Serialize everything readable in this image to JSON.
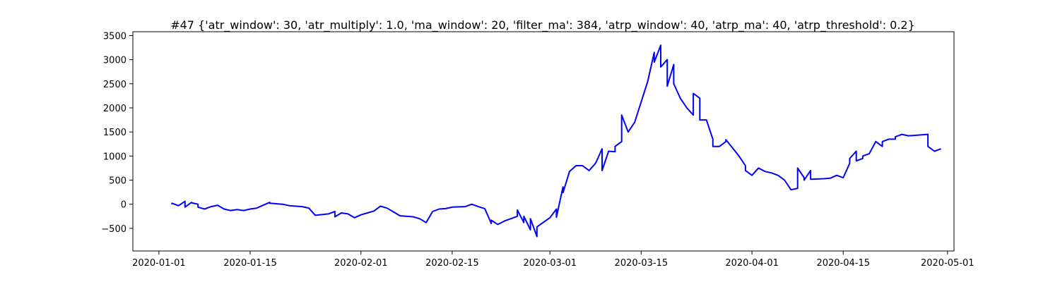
{
  "chart_data": {
    "type": "line",
    "title": "#47 {'atr_window': 30, 'atr_multiply': 1.0, 'ma_window': 20, 'filter_ma': 384, 'atrp_window': 40, 'atrp_ma': 40, 'atrp_threshold': 0.2}",
    "xlabel": "",
    "ylabel": "",
    "xlim": [
      "2019-12-28",
      "2020-05-02"
    ],
    "ylim": [
      -970,
      3580
    ],
    "x_ticks": [
      "2020-01-01",
      "2020-01-15",
      "2020-02-01",
      "2020-02-15",
      "2020-03-01",
      "2020-03-15",
      "2020-04-01",
      "2020-04-15",
      "2020-05-01"
    ],
    "y_ticks": [
      -500,
      0,
      500,
      1000,
      1500,
      2000,
      2500,
      3000,
      3500
    ],
    "grid": false,
    "legend": "none",
    "series": [
      {
        "color": "#0000ff",
        "x": [
          "2020-01-03",
          "2020-01-03",
          "2020-01-04",
          "2020-01-05",
          "2020-01-05",
          "2020-01-06",
          "2020-01-06",
          "2020-01-07",
          "2020-01-07",
          "2020-01-08",
          "2020-01-09",
          "2020-01-10",
          "2020-01-11",
          "2020-01-12",
          "2020-01-13",
          "2020-01-14",
          "2020-01-15",
          "2020-01-16",
          "2020-01-17",
          "2020-01-18",
          "2020-01-18",
          "2020-01-19",
          "2020-01-20",
          "2020-01-21",
          "2020-01-23",
          "2020-01-24",
          "2020-01-25",
          "2020-01-27",
          "2020-01-28",
          "2020-01-28",
          "2020-01-29",
          "2020-01-30",
          "2020-01-31",
          "2020-02-01",
          "2020-02-02",
          "2020-02-03",
          "2020-02-04",
          "2020-02-05",
          "2020-02-06",
          "2020-02-07",
          "2020-02-09",
          "2020-02-10",
          "2020-02-11",
          "2020-02-12",
          "2020-02-13",
          "2020-02-14",
          "2020-02-15",
          "2020-02-17",
          "2020-02-18",
          "2020-02-19",
          "2020-02-20",
          "2020-02-21",
          "2020-02-21",
          "2020-02-22",
          "2020-02-23",
          "2020-02-25",
          "2020-02-25",
          "2020-02-26",
          "2020-02-26",
          "2020-02-27",
          "2020-02-27",
          "2020-02-28",
          "2020-02-28",
          "2020-03-01",
          "2020-03-02",
          "2020-03-02",
          "2020-03-03",
          "2020-03-03",
          "2020-03-04",
          "2020-03-05",
          "2020-03-06",
          "2020-03-07",
          "2020-03-08",
          "2020-03-08",
          "2020-03-09",
          "2020-03-09",
          "2020-03-10",
          "2020-03-11",
          "2020-03-11",
          "2020-03-12",
          "2020-03-12",
          "2020-03-13",
          "2020-03-14",
          "2020-03-16",
          "2020-03-17",
          "2020-03-17",
          "2020-03-18",
          "2020-03-18",
          "2020-03-19",
          "2020-03-19",
          "2020-03-20",
          "2020-03-20",
          "2020-03-21",
          "2020-03-22",
          "2020-03-23",
          "2020-03-23",
          "2020-03-24",
          "2020-03-24",
          "2020-03-25",
          "2020-03-26",
          "2020-03-26",
          "2020-03-27",
          "2020-03-28",
          "2020-03-28",
          "2020-03-30",
          "2020-03-31",
          "2020-03-31",
          "2020-04-01",
          "2020-04-02",
          "2020-04-03",
          "2020-04-04",
          "2020-04-05",
          "2020-04-06",
          "2020-04-07",
          "2020-04-08",
          "2020-04-08",
          "2020-04-09",
          "2020-04-09",
          "2020-04-10",
          "2020-04-10",
          "2020-04-12",
          "2020-04-13",
          "2020-04-14",
          "2020-04-15",
          "2020-04-16",
          "2020-04-16",
          "2020-04-17",
          "2020-04-17",
          "2020-04-18",
          "2020-04-18",
          "2020-04-19",
          "2020-04-20",
          "2020-04-21",
          "2020-04-21",
          "2020-04-22",
          "2020-04-23",
          "2020-04-23",
          "2020-04-24",
          "2020-04-25",
          "2020-04-26",
          "2020-04-27",
          "2020-04-28",
          "2020-04-28",
          "2020-04-29",
          "2020-04-30"
        ],
        "y": [
          0,
          20,
          -30,
          60,
          -60,
          40,
          30,
          0,
          -60,
          -100,
          -50,
          -20,
          -100,
          -130,
          -110,
          -130,
          -100,
          -80,
          -20,
          40,
          20,
          10,
          0,
          -30,
          -50,
          -80,
          -230,
          -200,
          -150,
          -260,
          -180,
          -200,
          -280,
          -220,
          -180,
          -140,
          -40,
          -80,
          -160,
          -240,
          -260,
          -300,
          -380,
          -150,
          -100,
          -90,
          -60,
          -50,
          0,
          -50,
          -90,
          -400,
          -330,
          -420,
          -350,
          -250,
          -120,
          -380,
          -250,
          -530,
          -300,
          -670,
          -470,
          -280,
          -100,
          -270,
          360,
          240,
          680,
          800,
          800,
          700,
          850,
          850,
          1150,
          700,
          1100,
          1090,
          1200,
          1300,
          1850,
          1500,
          1700,
          2550,
          3150,
          2950,
          3300,
          2850,
          3000,
          2450,
          2900,
          2500,
          2200,
          2000,
          1850,
          2300,
          2200,
          1750,
          1750,
          1350,
          1200,
          1200,
          1300,
          1340,
          1000,
          800,
          700,
          600,
          750,
          680,
          650,
          600,
          500,
          300,
          330,
          750,
          550,
          500,
          700,
          520,
          530,
          540,
          600,
          550,
          850,
          950,
          1100,
          900,
          950,
          1000,
          1050,
          1300,
          1200,
          1300,
          1350,
          1350,
          1400,
          1450,
          1420,
          1430,
          1440,
          1450,
          1200,
          1100,
          1150
        ]
      }
    ]
  }
}
